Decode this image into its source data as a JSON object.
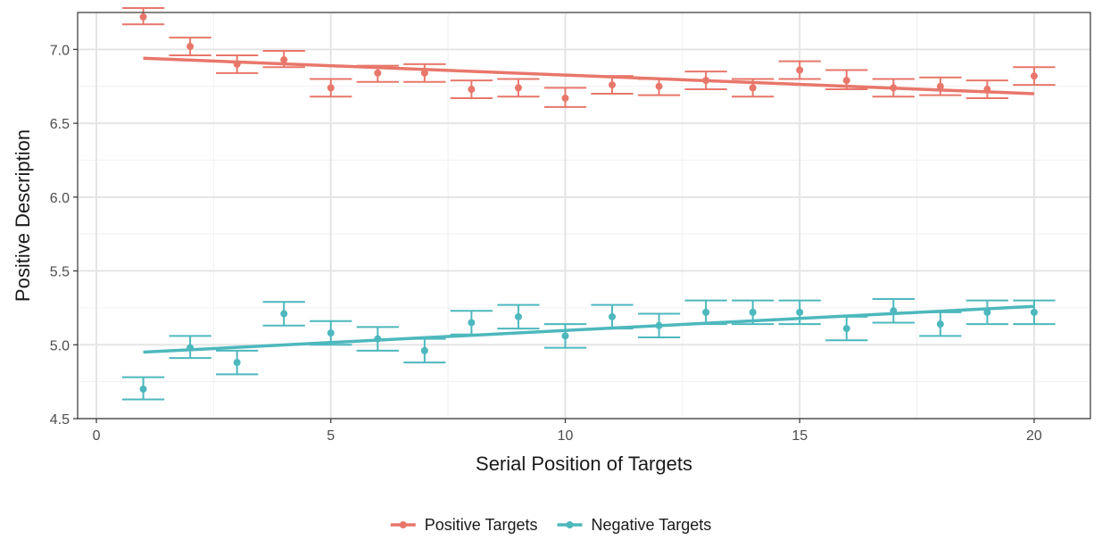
{
  "chart_data": {
    "type": "scatter",
    "xlabel": "Serial Position of Targets",
    "ylabel": "Positive Description",
    "xlim": [
      -0.4,
      21.2
    ],
    "ylim": [
      4.5,
      7.25
    ],
    "x_ticks": [
      0,
      5,
      10,
      15,
      20
    ],
    "y_ticks": [
      4.5,
      5.0,
      5.5,
      6.0,
      6.5,
      7.0
    ],
    "x_tick_labels": [
      "0",
      "5",
      "10",
      "15",
      "20"
    ],
    "y_tick_labels": [
      "4.5",
      "5.0",
      "5.5",
      "6.0",
      "6.5",
      "7.0"
    ],
    "grid": true,
    "legend_position": "bottom",
    "series": [
      {
        "name": "Positive Targets",
        "color": "#e8776b",
        "x": [
          1,
          2,
          3,
          4,
          5,
          6,
          7,
          8,
          9,
          10,
          11,
          12,
          13,
          14,
          15,
          16,
          17,
          18,
          19,
          20
        ],
        "mean": [
          7.22,
          7.02,
          6.9,
          6.93,
          6.74,
          6.84,
          6.84,
          6.73,
          6.74,
          6.67,
          6.76,
          6.75,
          6.79,
          6.74,
          6.86,
          6.79,
          6.74,
          6.75,
          6.73,
          6.82
        ],
        "lower": [
          7.17,
          6.96,
          6.84,
          6.88,
          6.68,
          6.78,
          6.78,
          6.67,
          6.68,
          6.61,
          6.7,
          6.69,
          6.73,
          6.68,
          6.8,
          6.73,
          6.68,
          6.69,
          6.67,
          6.76
        ],
        "upper": [
          7.28,
          7.08,
          6.96,
          6.99,
          6.8,
          6.89,
          6.9,
          6.79,
          6.8,
          6.74,
          6.82,
          6.8,
          6.85,
          6.8,
          6.92,
          6.86,
          6.8,
          6.81,
          6.79,
          6.88
        ],
        "trend": {
          "x": [
            1,
            20
          ],
          "y": [
            6.94,
            6.7
          ]
        }
      },
      {
        "name": "Negative Targets",
        "color": "#4db8bd",
        "x": [
          1,
          2,
          3,
          4,
          5,
          6,
          7,
          8,
          9,
          10,
          11,
          12,
          13,
          14,
          15,
          16,
          17,
          18,
          19,
          20
        ],
        "mean": [
          4.7,
          4.98,
          4.88,
          5.21,
          5.08,
          5.04,
          4.96,
          5.15,
          5.19,
          5.06,
          5.19,
          5.13,
          5.22,
          5.22,
          5.22,
          5.11,
          5.23,
          5.14,
          5.22,
          5.22
        ],
        "lower": [
          4.63,
          4.91,
          4.8,
          5.13,
          5.0,
          4.96,
          4.88,
          5.07,
          5.11,
          4.98,
          5.11,
          5.05,
          5.14,
          5.14,
          5.14,
          5.03,
          5.15,
          5.06,
          5.14,
          5.14
        ],
        "upper": [
          4.78,
          5.06,
          4.96,
          5.29,
          5.16,
          5.12,
          5.04,
          5.23,
          5.27,
          5.14,
          5.27,
          5.21,
          5.3,
          5.3,
          5.3,
          5.19,
          5.31,
          5.22,
          5.3,
          5.3
        ],
        "trend": {
          "x": [
            1,
            20
          ],
          "y": [
            4.95,
            5.26
          ]
        }
      }
    ]
  }
}
